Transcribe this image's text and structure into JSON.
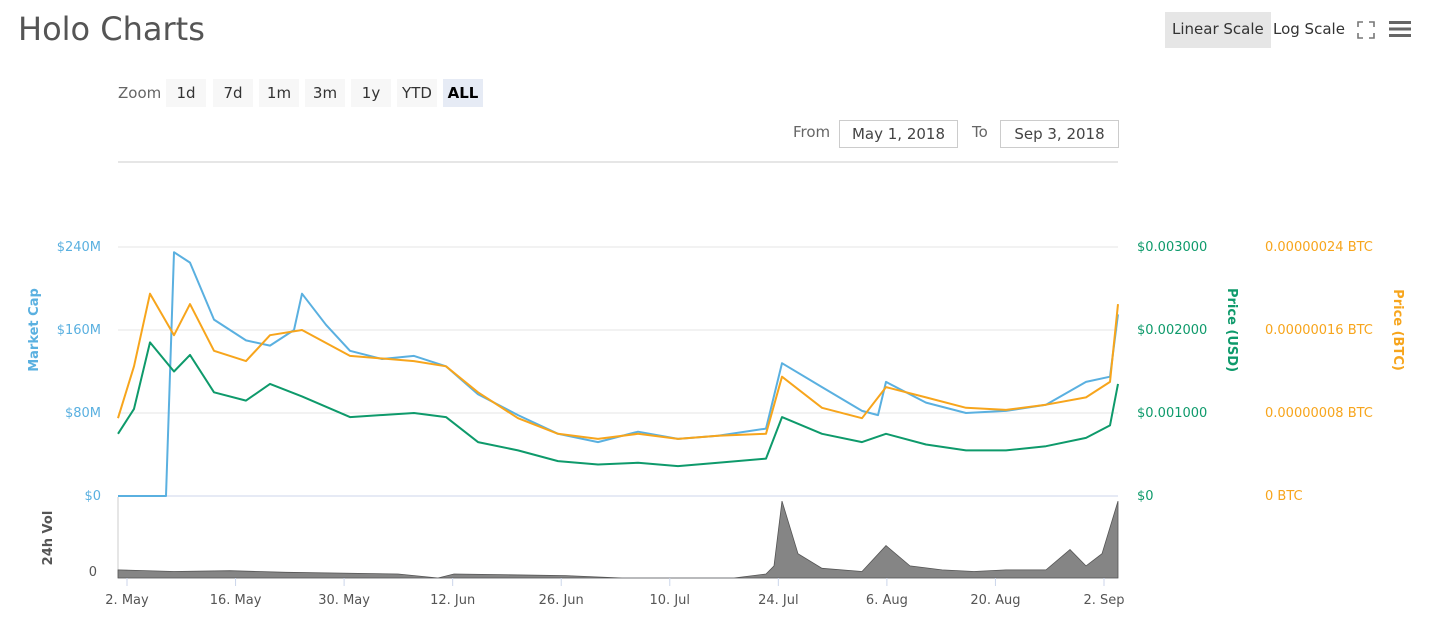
{
  "header": {
    "title": "Holo Charts",
    "linear_scale": "Linear Scale",
    "log_scale": "Log Scale"
  },
  "zoom": {
    "label": "Zoom",
    "buttons": [
      "1d",
      "7d",
      "1m",
      "3m",
      "1y",
      "YTD",
      "ALL"
    ],
    "selected": "ALL"
  },
  "range": {
    "from_label": "From",
    "from_value": "May 1, 2018",
    "to_label": "To",
    "to_value": "Sep 3, 2018"
  },
  "colors": {
    "market_cap": "#5ab0e0",
    "price_usd": "#0e9a6b",
    "price_btc": "#f7a51c",
    "volume": "#707070",
    "grid": "#e6e6e6"
  },
  "chart_data": {
    "type": "line",
    "x_axis": {
      "tick_labels": [
        "2. May",
        "16. May",
        "30. May",
        "12. Jun",
        "26. Jun",
        "10. Jul",
        "24. Jul",
        "6. Aug",
        "20. Aug",
        "2. Sep"
      ],
      "range": [
        "2018-05-01",
        "2018-09-03"
      ]
    },
    "y_axis_market_cap": {
      "title": "Market Cap",
      "tick_labels": [
        "$0",
        "$80M",
        "$160M",
        "$240M"
      ],
      "ylim": [
        0,
        240000000
      ]
    },
    "y_axis_price_usd": {
      "title": "Price (USD)",
      "tick_labels": [
        "$0",
        "$0.001000",
        "$0.002000",
        "$0.003000"
      ],
      "ylim": [
        0,
        0.003
      ]
    },
    "y_axis_price_btc": {
      "title": "Price (BTC)",
      "tick_labels": [
        "0 BTC",
        "0.00000008 BTC",
        "0.00000016 BTC",
        "0.00000024 BTC"
      ],
      "ylim": [
        0,
        2.4e-07
      ]
    },
    "volume_axis": {
      "title": "24h Vol",
      "tick_labels": [
        "0"
      ]
    },
    "series": [
      {
        "name": "Market Cap",
        "axis": "market_cap",
        "x": [
          "2018-05-01",
          "2018-05-07",
          "2018-05-08",
          "2018-05-10",
          "2018-05-13",
          "2018-05-17",
          "2018-05-20",
          "2018-05-23",
          "2018-05-24",
          "2018-05-27",
          "2018-05-30",
          "2018-06-03",
          "2018-06-07",
          "2018-06-11",
          "2018-06-15",
          "2018-06-20",
          "2018-06-25",
          "2018-06-30",
          "2018-07-05",
          "2018-07-10",
          "2018-07-15",
          "2018-07-21",
          "2018-07-23",
          "2018-07-28",
          "2018-08-02",
          "2018-08-04",
          "2018-08-05",
          "2018-08-10",
          "2018-08-15",
          "2018-08-20",
          "2018-08-25",
          "2018-08-30",
          "2018-09-02",
          "2018-09-03"
        ],
        "values": [
          0,
          0,
          235000000,
          225000000,
          170000000,
          150000000,
          145000000,
          160000000,
          195000000,
          165000000,
          140000000,
          132000000,
          135000000,
          125000000,
          98000000,
          78000000,
          60000000,
          52000000,
          62000000,
          55000000,
          58000000,
          65000000,
          128000000,
          105000000,
          82000000,
          78000000,
          110000000,
          90000000,
          80000000,
          82000000,
          88000000,
          110000000,
          115000000,
          175000000
        ]
      },
      {
        "name": "Price (USD)",
        "axis": "price_usd",
        "x": [
          "2018-05-01",
          "2018-05-03",
          "2018-05-05",
          "2018-05-08",
          "2018-05-10",
          "2018-05-13",
          "2018-05-17",
          "2018-05-20",
          "2018-05-24",
          "2018-05-30",
          "2018-06-07",
          "2018-06-11",
          "2018-06-15",
          "2018-06-20",
          "2018-06-25",
          "2018-06-30",
          "2018-07-05",
          "2018-07-10",
          "2018-07-15",
          "2018-07-21",
          "2018-07-23",
          "2018-07-28",
          "2018-08-02",
          "2018-08-05",
          "2018-08-10",
          "2018-08-15",
          "2018-08-20",
          "2018-08-25",
          "2018-08-30",
          "2018-09-02",
          "2018-09-03"
        ],
        "values": [
          0.00075,
          0.00105,
          0.00185,
          0.0015,
          0.0017,
          0.00125,
          0.00115,
          0.00135,
          0.0012,
          0.00095,
          0.001,
          0.00095,
          0.00065,
          0.00055,
          0.00042,
          0.00038,
          0.0004,
          0.00036,
          0.0004,
          0.00045,
          0.00095,
          0.00075,
          0.00065,
          0.00075,
          0.00062,
          0.00055,
          0.00055,
          0.0006,
          0.0007,
          0.00085,
          0.00135
        ]
      },
      {
        "name": "Price (BTC)",
        "axis": "price_btc",
        "x": [
          "2018-05-01",
          "2018-05-03",
          "2018-05-05",
          "2018-05-08",
          "2018-05-10",
          "2018-05-13",
          "2018-05-17",
          "2018-05-20",
          "2018-05-24",
          "2018-05-30",
          "2018-06-07",
          "2018-06-11",
          "2018-06-15",
          "2018-06-20",
          "2018-06-25",
          "2018-06-30",
          "2018-07-05",
          "2018-07-10",
          "2018-07-15",
          "2018-07-21",
          "2018-07-23",
          "2018-07-28",
          "2018-08-02",
          "2018-08-05",
          "2018-08-10",
          "2018-08-15",
          "2018-08-20",
          "2018-08-25",
          "2018-08-30",
          "2018-09-02",
          "2018-09-03"
        ],
        "values": [
          7.5e-08,
          1.25e-07,
          1.95e-07,
          1.55e-07,
          1.85e-07,
          1.4e-07,
          1.3e-07,
          1.55e-07,
          1.6e-07,
          1.35e-07,
          1.3e-07,
          1.25e-07,
          1e-07,
          7.5e-08,
          6e-08,
          5.5e-08,
          6e-08,
          5.5e-08,
          5.8e-08,
          6e-08,
          1.15e-07,
          8.5e-08,
          7.5e-08,
          1.05e-07,
          9.5e-08,
          8.5e-08,
          8.3e-08,
          8.8e-08,
          9.5e-08,
          1.1e-07,
          1.85e-07
        ]
      },
      {
        "name": "24h Vol",
        "axis": "volume",
        "x": [
          "2018-05-01",
          "2018-05-08",
          "2018-05-15",
          "2018-05-22",
          "2018-05-29",
          "2018-06-05",
          "2018-06-10",
          "2018-06-12",
          "2018-06-19",
          "2018-06-26",
          "2018-07-03",
          "2018-07-10",
          "2018-07-17",
          "2018-07-21",
          "2018-07-22",
          "2018-07-23",
          "2018-07-25",
          "2018-07-28",
          "2018-08-02",
          "2018-08-05",
          "2018-08-08",
          "2018-08-12",
          "2018-08-16",
          "2018-08-20",
          "2018-08-25",
          "2018-08-28",
          "2018-08-30",
          "2018-09-01",
          "2018-09-03"
        ],
        "values": [
          0.1,
          0.08,
          0.09,
          0.07,
          0.06,
          0.05,
          0.0,
          0.05,
          0.04,
          0.03,
          0.0,
          0.0,
          0.0,
          0.05,
          0.15,
          0.95,
          0.3,
          0.12,
          0.08,
          0.4,
          0.15,
          0.1,
          0.08,
          0.1,
          0.1,
          0.35,
          0.15,
          0.3,
          0.95
        ]
      }
    ]
  }
}
